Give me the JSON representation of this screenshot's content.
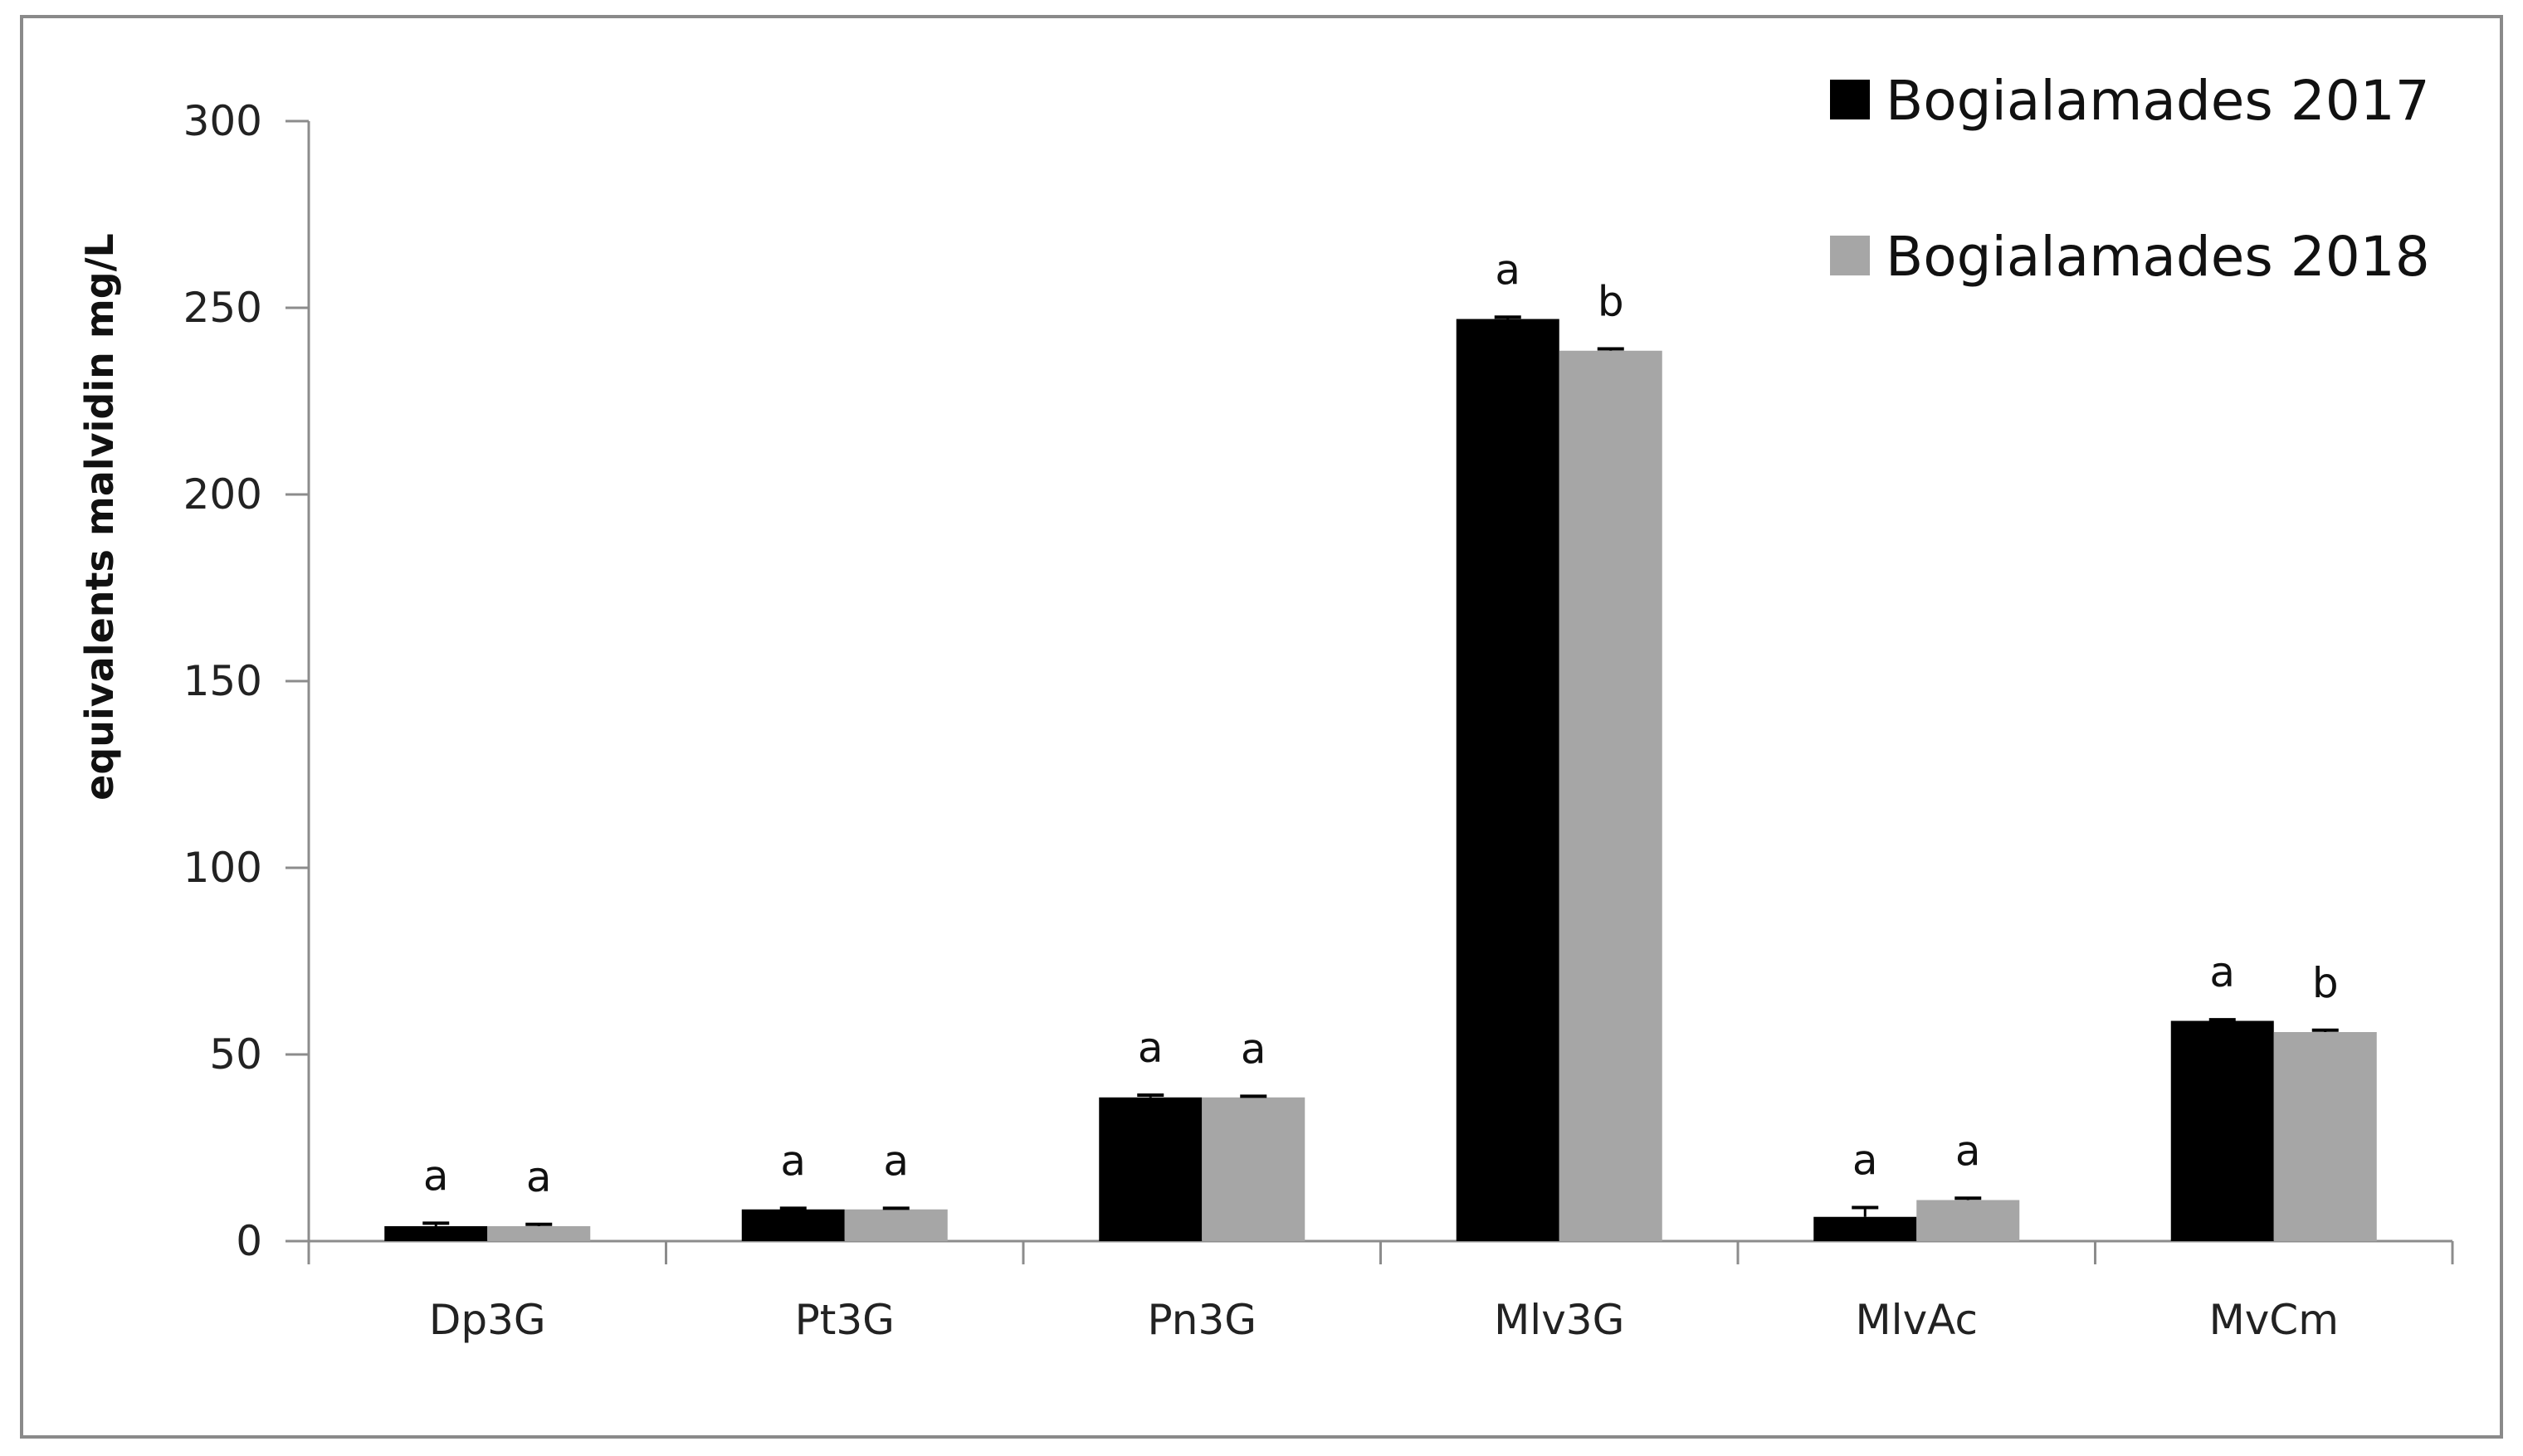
{
  "chart_data": {
    "type": "bar",
    "title": "",
    "xlabel": "",
    "ylabel": "equivalents malvidin mg/L",
    "ylim": [
      0,
      300
    ],
    "yticks": [
      0,
      50,
      100,
      150,
      200,
      250,
      300
    ],
    "grid": false,
    "legend_position": "top-right",
    "categories": [
      "Dp3G",
      "Pt3G",
      "Pn3G",
      "Mlv3G",
      "MlvAc",
      "MvCm"
    ],
    "series": [
      {
        "name": "Bogialamades 2017",
        "color": "#000000",
        "values": [
          4,
          8.5,
          38.5,
          247,
          6.5,
          59
        ],
        "errors": [
          0.8,
          0.3,
          0.6,
          0.5,
          2.5,
          0.3
        ],
        "labels": [
          "a",
          "a",
          "a",
          "a",
          "a",
          "a"
        ]
      },
      {
        "name": "Bogialamades 2018",
        "color": "#a6a6a6",
        "values": [
          4,
          8.5,
          38.5,
          238.5,
          11,
          56
        ],
        "errors": [
          0.5,
          0.3,
          0.3,
          0.5,
          0.5,
          0.5
        ],
        "labels": [
          "a",
          "a",
          "a",
          "b",
          "a",
          "b"
        ]
      }
    ]
  }
}
